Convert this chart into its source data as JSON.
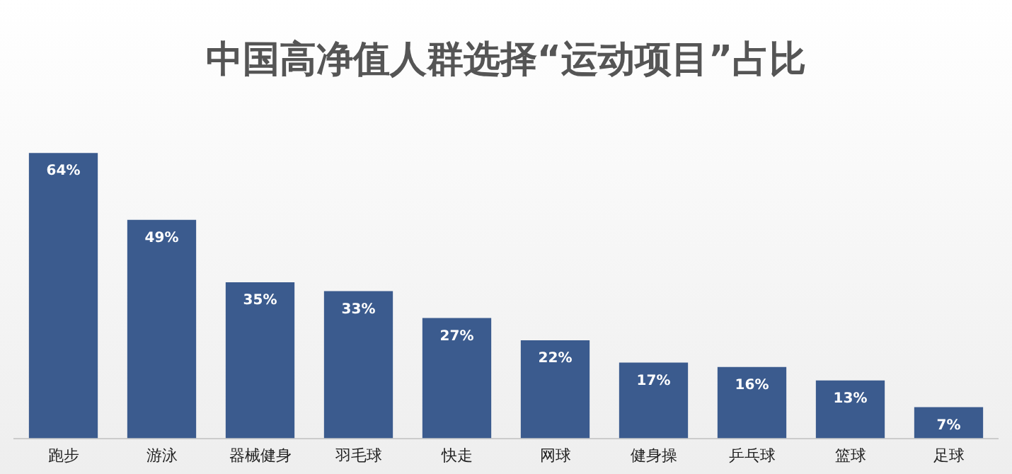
{
  "chart_data": {
    "type": "bar",
    "title": "中国高净值人群选择“运动项目”占比",
    "categories": [
      "跑步",
      "游泳",
      "器械健身",
      "羽毛球",
      "快走",
      "网球",
      "健身操",
      "乒乓球",
      "篮球",
      "足球"
    ],
    "values": [
      64,
      49,
      35,
      33,
      27,
      22,
      17,
      16,
      13,
      7
    ],
    "value_labels": [
      "64%",
      "49%",
      "35%",
      "33%",
      "27%",
      "22%",
      "17%",
      "16%",
      "13%",
      "7%"
    ],
    "color": "#3b5b8e",
    "grid": false,
    "legend": false
  }
}
